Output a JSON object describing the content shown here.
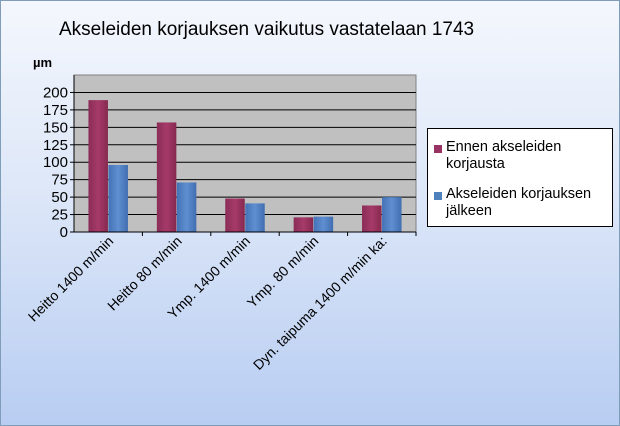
{
  "chart_data": {
    "type": "bar",
    "title": "Akseleiden korjauksen vaikutus vastatelaan 1743",
    "ylabel": "µm",
    "xlabel": "",
    "ylim": [
      0,
      225
    ],
    "yticks": [
      0,
      25,
      50,
      75,
      100,
      125,
      150,
      175,
      200
    ],
    "grid": true,
    "legend_position": "right",
    "categories": [
      "Heitto 1400 m/min",
      "Heitto 80 m/min",
      "Ymp. 1400 m/min",
      "Ymp. 80 m/min",
      "Dyn. taipuma 1400 m/min ka:"
    ],
    "series": [
      {
        "name": "Ennen akseleiden korjausta",
        "color": "#993366",
        "values": [
          189,
          157,
          48,
          21,
          38
        ]
      },
      {
        "name": "Akseleiden korjauksen jälkeen",
        "color": "#4f81bd",
        "values": [
          96,
          71,
          41,
          22,
          50
        ]
      }
    ]
  }
}
